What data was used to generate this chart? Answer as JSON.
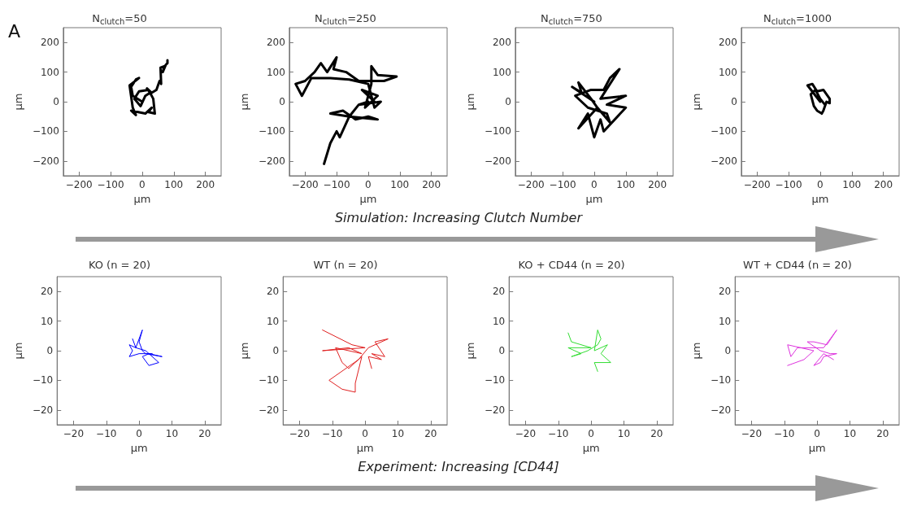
{
  "chart_data": [
    {
      "type": "line",
      "title": "N$_{clutch}$=50",
      "xlabel": "µm",
      "ylabel": "µm",
      "color": "#000000",
      "annotations": [
        "A",
        "Simulation: Increasing Clutch Number"
      ],
      "xlim": [
        -250,
        250
      ],
      "ylim": [
        -250,
        250
      ],
      "xticks": [
        -200,
        -100,
        0,
        100,
        200
      ],
      "yticks": [
        -200,
        -100,
        0,
        100,
        200
      ],
      "x": [
        0,
        -30,
        -35,
        -20,
        -10,
        -40,
        -30,
        -20,
        -35,
        10,
        30,
        20,
        40,
        35,
        20,
        -10,
        -25,
        -5,
        10,
        25,
        15,
        30,
        45,
        55,
        60,
        58,
        70,
        65,
        75,
        80,
        80
      ],
      "values": [
        0,
        20,
        50,
        75,
        80,
        55,
        -20,
        -45,
        -30,
        -40,
        -20,
        -35,
        -40,
        10,
        40,
        35,
        10,
        -15,
        20,
        30,
        45,
        30,
        40,
        70,
        60,
        115,
        120,
        100,
        125,
        130,
        140
      ]
    },
    {
      "type": "line",
      "title": "N$_{clutch}$=250",
      "xlabel": "µm",
      "ylabel": "µm",
      "color": "#000000",
      "xlim": [
        -250,
        250
      ],
      "ylim": [
        -250,
        250
      ],
      "xticks": [
        -200,
        -100,
        0,
        100,
        200
      ],
      "yticks": [
        -200,
        -100,
        0,
        100,
        200
      ],
      "x": [
        0,
        -30,
        20,
        -20,
        30,
        -10,
        10,
        10,
        30,
        90,
        50,
        -30,
        -70,
        -110,
        -100,
        -130,
        -150,
        -170,
        -200,
        -230,
        -210,
        -180,
        -120,
        -60,
        0,
        20,
        40,
        -30,
        -60,
        -120,
        -80,
        -40,
        0,
        30,
        -60,
        -90,
        -100,
        -120,
        -140
      ],
      "values": [
        0,
        -10,
        0,
        40,
        20,
        -20,
        60,
        120,
        90,
        85,
        70,
        70,
        100,
        110,
        150,
        100,
        130,
        100,
        70,
        60,
        20,
        80,
        80,
        75,
        60,
        -20,
        0,
        -10,
        -50,
        -40,
        -30,
        -60,
        -50,
        -60,
        -50,
        -120,
        -100,
        -140,
        -210
      ]
    },
    {
      "type": "line",
      "title": "N$_{clutch}$=750",
      "xlabel": "µm",
      "ylabel": "µm",
      "color": "#000000",
      "xlim": [
        -250,
        250
      ],
      "ylim": [
        -250,
        250
      ],
      "xticks": [
        -200,
        -100,
        0,
        100,
        200
      ],
      "yticks": [
        -200,
        -100,
        0,
        100,
        200
      ],
      "x": [
        0,
        -70,
        -40,
        -50,
        -10,
        10,
        -50,
        -20,
        0,
        20,
        30,
        100,
        40,
        100,
        20,
        80,
        50,
        30,
        -10,
        -60,
        -20,
        40,
        50,
        10
      ],
      "values": [
        0,
        50,
        30,
        65,
        10,
        -20,
        -90,
        -40,
        -120,
        -60,
        -100,
        -20,
        -10,
        20,
        10,
        110,
        80,
        40,
        40,
        20,
        -20,
        -40,
        -70,
        -20
      ]
    },
    {
      "type": "line",
      "title": "N$_{clutch}$=1000",
      "xlabel": "µm",
      "ylabel": "µm",
      "color": "#000000",
      "xlim": [
        -250,
        250
      ],
      "ylim": [
        -250,
        250
      ],
      "xticks": [
        -200,
        -100,
        0,
        100,
        200
      ],
      "yticks": [
        -200,
        -100,
        0,
        100,
        200
      ],
      "x": [
        0,
        -40,
        -25,
        -10,
        10,
        20,
        30,
        30,
        20,
        10,
        5,
        -10,
        -20,
        -25,
        -30,
        -15,
        0,
        15
      ],
      "values": [
        0,
        55,
        60,
        35,
        40,
        25,
        10,
        -5,
        0,
        -30,
        -40,
        -30,
        -15,
        5,
        25,
        40,
        10,
        -10
      ]
    },
    {
      "type": "line",
      "title": "KO (n = 20)",
      "xlabel": "µm",
      "ylabel": "µm",
      "annotations": [
        "Experiment: Increasing [CD44]"
      ],
      "xlim": [
        -25,
        25
      ],
      "ylim": [
        -25,
        25
      ],
      "xticks": [
        -20,
        -10,
        0,
        10,
        20
      ],
      "yticks": [
        -20,
        -10,
        0,
        10,
        20
      ],
      "color": "#0000ff",
      "x": [
        -2,
        -1,
        1,
        0,
        1,
        2,
        7,
        3,
        1,
        3,
        6,
        2,
        -1,
        -3,
        -2,
        -3,
        0,
        4
      ],
      "values": [
        4,
        1,
        7,
        3,
        0,
        -1,
        -2,
        -1,
        -2,
        -5,
        -4,
        0,
        1,
        2,
        0,
        -2,
        -1,
        -1
      ]
    },
    {
      "type": "line",
      "title": "WT (n = 20)",
      "xlabel": "µm",
      "ylabel": "µm",
      "xlim": [
        -25,
        25
      ],
      "ylim": [
        -25,
        25
      ],
      "xticks": [
        -20,
        -10,
        0,
        10,
        20
      ],
      "yticks": [
        -20,
        -10,
        0,
        10,
        20
      ],
      "color": "#e02020",
      "x": [
        -13,
        -4,
        0,
        -13,
        -5,
        -1,
        -9,
        -7,
        -5,
        -1,
        -3,
        -3,
        -7,
        -11,
        -2,
        1,
        7,
        3,
        6,
        2,
        5,
        1,
        2
      ],
      "values": [
        7,
        2,
        1,
        0,
        1,
        -1,
        1,
        -4,
        -6,
        -2,
        -11,
        -14,
        -13,
        -10,
        -3,
        1,
        4,
        3,
        -2,
        -1,
        -3,
        -2,
        -6
      ]
    },
    {
      "type": "line",
      "title": "KO + CD44 (n = 20)",
      "xlabel": "µm",
      "ylabel": "µm",
      "xlim": [
        -25,
        25
      ],
      "ylim": [
        -25,
        25
      ],
      "xticks": [
        -20,
        -10,
        0,
        10,
        20
      ],
      "yticks": [
        -20,
        -10,
        0,
        10,
        20
      ],
      "color": "#33dd33",
      "x": [
        -7,
        -6,
        -3,
        0,
        -7,
        -5,
        -3,
        -6,
        -1,
        2,
        3,
        2,
        1,
        5,
        3,
        6,
        1,
        2
      ],
      "values": [
        6,
        3,
        2,
        1,
        1,
        0,
        -1,
        -2,
        0,
        2,
        4,
        7,
        0,
        2,
        -1,
        -4,
        -4,
        -7
      ]
    },
    {
      "type": "line",
      "title": "WT + CD44 (n = 20)",
      "xlabel": "µm",
      "ylabel": "µm",
      "xlim": [
        -25,
        25
      ],
      "ylim": [
        -25,
        25
      ],
      "xticks": [
        -20,
        -10,
        0,
        10,
        20
      ],
      "yticks": [
        -20,
        -10,
        0,
        10,
        20
      ],
      "color": "#dd33dd",
      "x": [
        -9,
        -4,
        -1,
        -9,
        -8,
        -6,
        0,
        2,
        4,
        6,
        3,
        -1,
        -3,
        1,
        4,
        6,
        2,
        1,
        -1,
        2,
        5
      ],
      "values": [
        -5,
        -3,
        0,
        2,
        -2,
        1,
        1,
        1,
        4,
        7,
        2,
        3,
        3,
        0,
        -1,
        -1,
        -2,
        -4,
        -5,
        -1,
        -3
      ]
    }
  ]
}
